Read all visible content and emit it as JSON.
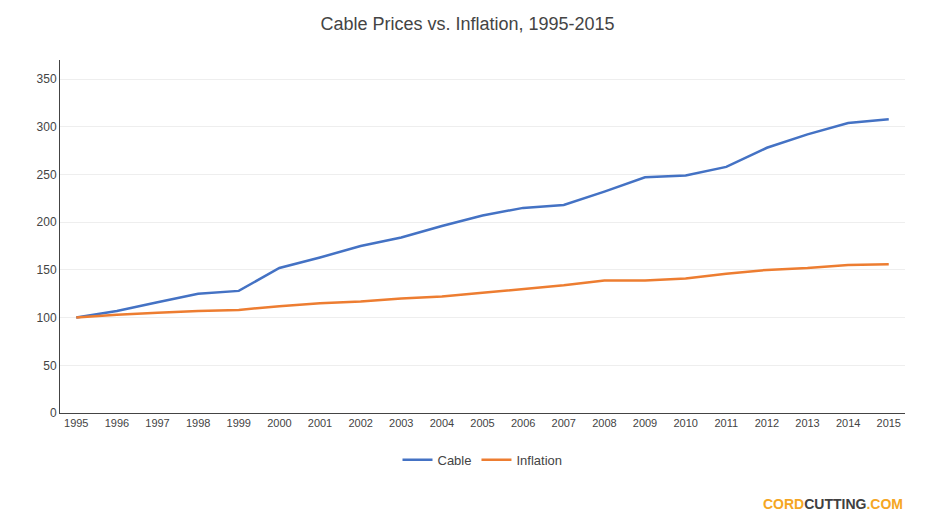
{
  "chart_data": {
    "type": "line",
    "title": "Cable Prices vs. Inflation, 1995-2015",
    "x": [
      1995,
      1996,
      1997,
      1998,
      1999,
      2000,
      2001,
      2002,
      2003,
      2004,
      2005,
      2006,
      2007,
      2008,
      2009,
      2010,
      2011,
      2012,
      2013,
      2014,
      2015
    ],
    "series": [
      {
        "name": "Cable",
        "color": "#4472C4",
        "values": [
          100,
          107,
          116,
          125,
          128,
          152,
          163,
          175,
          184,
          196,
          207,
          215,
          218,
          232,
          247,
          249,
          258,
          278,
          292,
          304,
          308
        ]
      },
      {
        "name": "Inflation",
        "color": "#ED7D31",
        "values": [
          100,
          103,
          105,
          107,
          108,
          112,
          115,
          117,
          120,
          122,
          126,
          130,
          134,
          139,
          139,
          141,
          146,
          150,
          152,
          155,
          156
        ]
      }
    ],
    "xlim": [
      1994.6,
      2015.4
    ],
    "xticks": [
      1995,
      1996,
      1997,
      1998,
      1999,
      2000,
      2001,
      2002,
      2003,
      2004,
      2005,
      2006,
      2007,
      2008,
      2009,
      2010,
      2011,
      2012,
      2013,
      2014,
      2015
    ],
    "ylim": [
      0,
      370
    ],
    "yticks": [
      0,
      50,
      100,
      150,
      200,
      250,
      300,
      350
    ],
    "grid": true,
    "legend": "bottom",
    "annotations": [
      {
        "text": "CORD",
        "color": "#F5A623"
      },
      {
        "text": "CUTTING",
        "color": "#404040"
      },
      {
        "text": ".COM",
        "color": "#F5A623"
      }
    ]
  }
}
